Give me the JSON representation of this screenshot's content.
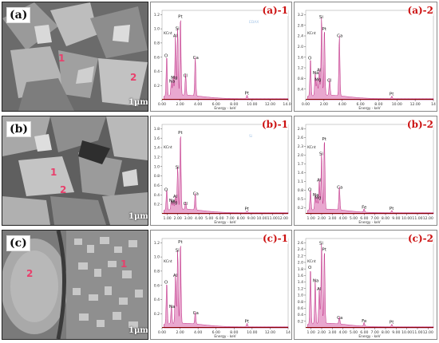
{
  "rows": [
    {
      "row_label": "(a)",
      "scale_bar": "1μm",
      "sem_spots": [
        {
          "text": "1"
        },
        {
          "text": "2"
        }
      ],
      "panels": [
        {
          "label": "(a)-1",
          "xticks": [
            "0.00",
            "2.00",
            "4.00",
            "6.00",
            "8.00",
            "10.00",
            "12.00",
            "14.00"
          ],
          "yticks": [
            "1.2",
            "1.0",
            "0.8",
            "0.6",
            "0.4",
            "0.2"
          ],
          "ylabel": "KCnt",
          "xlabel": "Energy - keV",
          "watermark": "EDAX",
          "peaks": [
            {
              "x": 0.52,
              "h": 0.58,
              "label": "O"
            },
            {
              "x": 1.04,
              "h": 0.22,
              "label": "Na"
            },
            {
              "x": 1.25,
              "h": 0.27,
              "label": "Mg"
            },
            {
              "x": 1.49,
              "h": 0.86,
              "label": "Al"
            },
            {
              "x": 1.74,
              "h": 0.96,
              "label": "Si"
            },
            {
              "x": 2.05,
              "h": 1.13,
              "label": "Pt"
            },
            {
              "x": 2.62,
              "h": 0.3,
              "label": "Cl"
            },
            {
              "x": 3.69,
              "h": 0.55,
              "label": "Ca"
            },
            {
              "x": 9.44,
              "h": 0.05,
              "label": "Pt"
            }
          ]
        },
        {
          "label": "(a)-2",
          "xticks": [
            "0.00",
            "2.00",
            "4.00",
            "6.00",
            "8.00",
            "10.00",
            "12.00",
            "14"
          ],
          "yticks": [
            "3.2",
            "2.8",
            "2.4",
            "2.0",
            "1.6",
            "1.2",
            "0.8",
            "0.4"
          ],
          "ylabel": "KCnt",
          "xlabel": "Energy - keV",
          "peaks": [
            {
              "x": 0.52,
              "h": 1.45,
              "label": "O"
            },
            {
              "x": 1.04,
              "h": 0.9,
              "label": "Na"
            },
            {
              "x": 1.25,
              "h": 0.65,
              "label": "Mg"
            },
            {
              "x": 1.49,
              "h": 1.0,
              "label": "Al"
            },
            {
              "x": 1.74,
              "h": 3.0,
              "label": "Si"
            },
            {
              "x": 2.05,
              "h": 2.55,
              "label": "Pt"
            },
            {
              "x": 2.62,
              "h": 0.62,
              "label": "Cl"
            },
            {
              "x": 3.69,
              "h": 2.3,
              "label": "Ca"
            },
            {
              "x": 9.44,
              "h": 0.1,
              "label": "Pt"
            }
          ]
        }
      ]
    },
    {
      "row_label": "(b)",
      "scale_bar": "1μm",
      "sem_spots": [
        {
          "text": "1"
        },
        {
          "text": "2"
        }
      ],
      "panels": [
        {
          "label": "(b)-1",
          "xticks": [
            "1.00",
            "2.00",
            "3.00",
            "4.00",
            "5.00",
            "6.00",
            "7.00",
            "8.00",
            "9.00",
            "10.00",
            "11.00",
            "12.00"
          ],
          "yticks": [
            "1.8",
            "1.6",
            "1.4",
            "1.2",
            "1.0",
            "0.8",
            "0.6",
            "0.4",
            "0.2"
          ],
          "ylabel": "KCnt",
          "xlabel": "Energy - keV",
          "watermark": "Si",
          "peaks": [
            {
              "x": 0.52,
              "h": 0.45,
              "label": "O"
            },
            {
              "x": 1.04,
              "h": 0.22,
              "label": "Na"
            },
            {
              "x": 1.25,
              "h": 0.18,
              "label": "Mg"
            },
            {
              "x": 1.49,
              "h": 0.3,
              "label": "Al"
            },
            {
              "x": 1.74,
              "h": 0.92,
              "label": "Si"
            },
            {
              "x": 2.05,
              "h": 1.65,
              "label": "Pt"
            },
            {
              "x": 2.62,
              "h": 0.15,
              "label": "Cl"
            },
            {
              "x": 3.69,
              "h": 0.36,
              "label": "Ca"
            },
            {
              "x": 9.44,
              "h": 0.04,
              "label": "Pt"
            }
          ]
        },
        {
          "label": "(b)-2",
          "xticks": [
            "1.00",
            "2.00",
            "3.00",
            "4.00",
            "5.00",
            "6.00",
            "7.00",
            "8.00",
            "9.00",
            "10.00",
            "11.00",
            "12.00"
          ],
          "yticks": [
            "2.9",
            "2.6",
            "2.3",
            "2.0",
            "1.7",
            "1.4",
            "1.1",
            "0.8",
            "0.5",
            "0.2"
          ],
          "ylabel": "KCnt",
          "xlabel": "Energy - keV",
          "peaks": [
            {
              "x": 0.52,
              "h": 0.72,
              "label": "O"
            },
            {
              "x": 1.04,
              "h": 0.55,
              "label": "Na"
            },
            {
              "x": 1.25,
              "h": 0.45,
              "label": "Mg"
            },
            {
              "x": 1.49,
              "h": 1.05,
              "label": "Al"
            },
            {
              "x": 1.74,
              "h": 1.95,
              "label": "Si"
            },
            {
              "x": 2.05,
              "h": 2.45,
              "label": "Pt"
            },
            {
              "x": 3.69,
              "h": 0.8,
              "label": "Ca"
            },
            {
              "x": 6.4,
              "h": 0.12,
              "label": "Fe"
            },
            {
              "x": 9.44,
              "h": 0.08,
              "label": "Pt"
            }
          ]
        }
      ]
    },
    {
      "row_label": "(c)",
      "scale_bar": "1μm",
      "sem_spots": [
        {
          "text": "2"
        },
        {
          "text": "1"
        }
      ],
      "panels": [
        {
          "label": "(c)-1",
          "xticks": [
            "0.00",
            "2.00",
            "4.00",
            "6.00",
            "8.00",
            "10.00",
            "12.00",
            "14"
          ],
          "yticks": [
            "1.2",
            "1.0",
            "0.8",
            "0.6",
            "0.4",
            "0.2"
          ],
          "ylabel": "KCnt",
          "xlabel": "Energy - keV",
          "peaks": [
            {
              "x": 0.52,
              "h": 0.6,
              "label": "O"
            },
            {
              "x": 1.04,
              "h": 0.26,
              "label": "Na"
            },
            {
              "x": 1.49,
              "h": 0.7,
              "label": "Al"
            },
            {
              "x": 1.74,
              "h": 1.05,
              "label": "Si"
            },
            {
              "x": 2.05,
              "h": 1.17,
              "label": "Pt"
            },
            {
              "x": 3.69,
              "h": 0.17,
              "label": "Ca"
            },
            {
              "x": 9.44,
              "h": 0.05,
              "label": "Pt"
            }
          ]
        },
        {
          "label": "(c)-2",
          "xticks": [
            "1.00",
            "2.00",
            "3.00",
            "4.00",
            "5.00",
            "6.00",
            "7.00",
            "8.00",
            "9.00",
            "10.00",
            "11.00",
            "12.00"
          ],
          "yticks": [
            "2.6",
            "2.4",
            "2.2",
            "2.0",
            "1.8",
            "1.6",
            "1.4",
            "1.2",
            "1.0",
            "0.8",
            "0.6",
            "0.4",
            "0.2"
          ],
          "ylabel": "KCnt",
          "xlabel": "Energy - keV",
          "peaks": [
            {
              "x": 0.52,
              "h": 1.75,
              "label": "O"
            },
            {
              "x": 1.04,
              "h": 1.35,
              "label": "Na"
            },
            {
              "x": 1.49,
              "h": 1.1,
              "label": "Al"
            },
            {
              "x": 1.74,
              "h": 2.5,
              "label": "Si"
            },
            {
              "x": 2.05,
              "h": 2.3,
              "label": "Pt"
            },
            {
              "x": 3.69,
              "h": 0.22,
              "label": "Ca"
            },
            {
              "x": 6.4,
              "h": 0.12,
              "label": "Fe"
            },
            {
              "x": 9.44,
              "h": 0.08,
              "label": "Pt"
            }
          ]
        }
      ]
    }
  ],
  "colors": {
    "spectrum_fill": "#e9a7cf",
    "spectrum_line": "#b0006a",
    "baseline": "#8a0000",
    "panel_label": "#cc1111",
    "sem_spot": "#e8406c"
  }
}
